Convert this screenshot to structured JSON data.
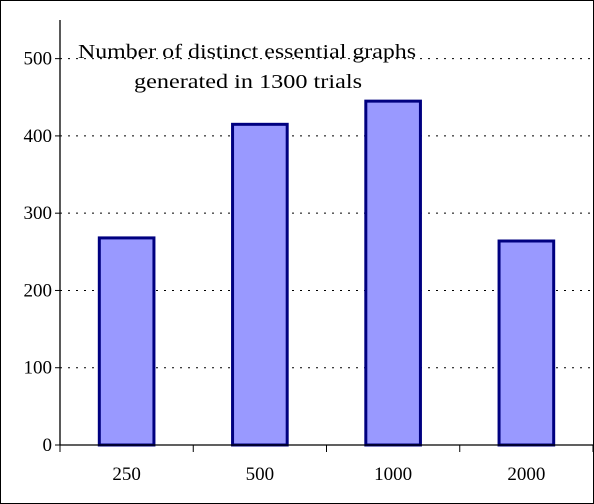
{
  "chart_data": {
    "type": "bar",
    "title_lines": [
      "Number of distinct essential graphs",
      "generated in 1300 trials"
    ],
    "categories": [
      "250",
      "500",
      "1000",
      "2000"
    ],
    "values": [
      268,
      415,
      445,
      264
    ],
    "ylim": [
      0,
      550
    ],
    "yticks": [
      0,
      100,
      200,
      300,
      400,
      500
    ],
    "ytick_labels": [
      "0",
      "100",
      "200",
      "300",
      "400",
      "500"
    ],
    "grid": true,
    "bar_fill": "#9999ff",
    "bar_stroke": "#000080"
  }
}
